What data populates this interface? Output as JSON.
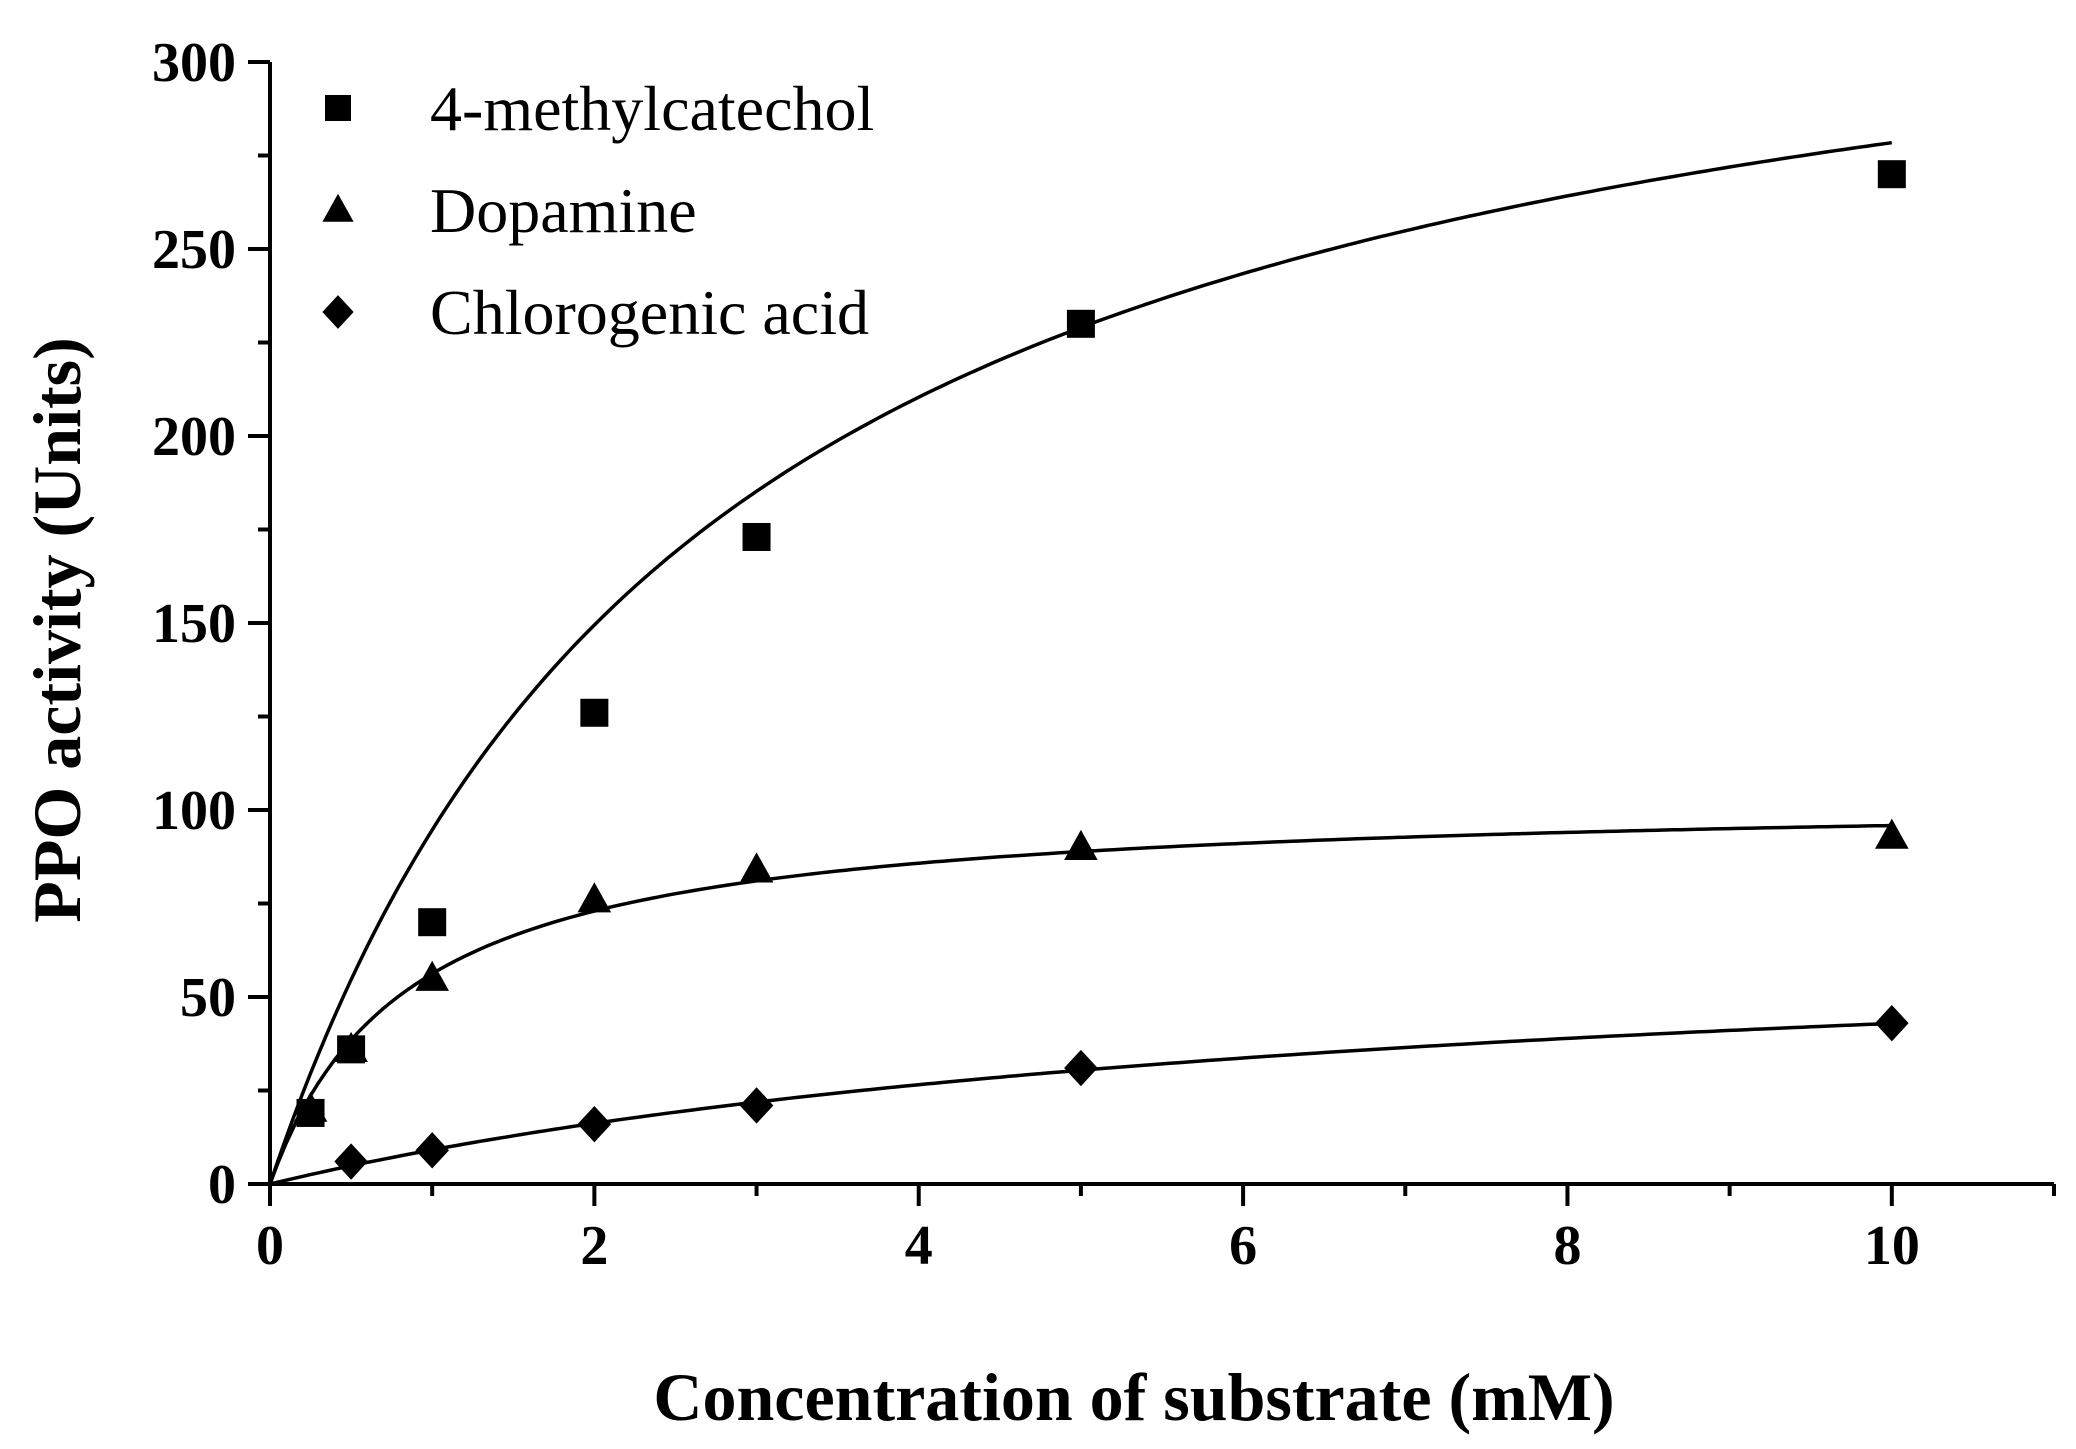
{
  "chart_data": {
    "type": "scatter",
    "title": "",
    "xlabel": "Concentration of substrate (mM)",
    "ylabel": "PPO activity (Units)",
    "xlim": [
      0,
      11
    ],
    "ylim": [
      0,
      300
    ],
    "x_ticks": [
      0,
      2,
      4,
      6,
      8,
      10
    ],
    "y_ticks": [
      0,
      50,
      100,
      150,
      200,
      250,
      300
    ],
    "x_tick_labels": [
      "0",
      "2",
      "4",
      "6",
      "8",
      "10"
    ],
    "y_tick_labels": [
      "0",
      "50",
      "100",
      "150",
      "200",
      "250",
      "300"
    ],
    "grid": false,
    "legend_position": "top-left",
    "series": [
      {
        "name": "4-methylcatechol",
        "marker": "square",
        "x": [
          0.25,
          0.5,
          1,
          2,
          3,
          5,
          10
        ],
        "y": [
          19,
          36,
          70,
          126,
          173,
          230,
          270
        ],
        "fit": {
          "model": "Michaelis-Menten",
          "vmax": 355,
          "km": 2.75
        }
      },
      {
        "name": "Dopamine",
        "marker": "triangle",
        "x": [
          0.25,
          0.5,
          1,
          2,
          3,
          5,
          10
        ],
        "y": [
          20,
          36,
          55,
          76,
          84,
          90,
          93
        ],
        "fit": {
          "model": "Michaelis-Menten",
          "vmax": 104,
          "km": 0.85
        }
      },
      {
        "name": "Chlorogenic acid",
        "marker": "diamond",
        "x": [
          0.5,
          1,
          2,
          3,
          5,
          10
        ],
        "y": [
          6,
          9,
          16,
          21,
          31,
          43
        ],
        "fit": {
          "model": "Michaelis-Menten",
          "vmax": 73,
          "km": 7
        }
      }
    ]
  }
}
